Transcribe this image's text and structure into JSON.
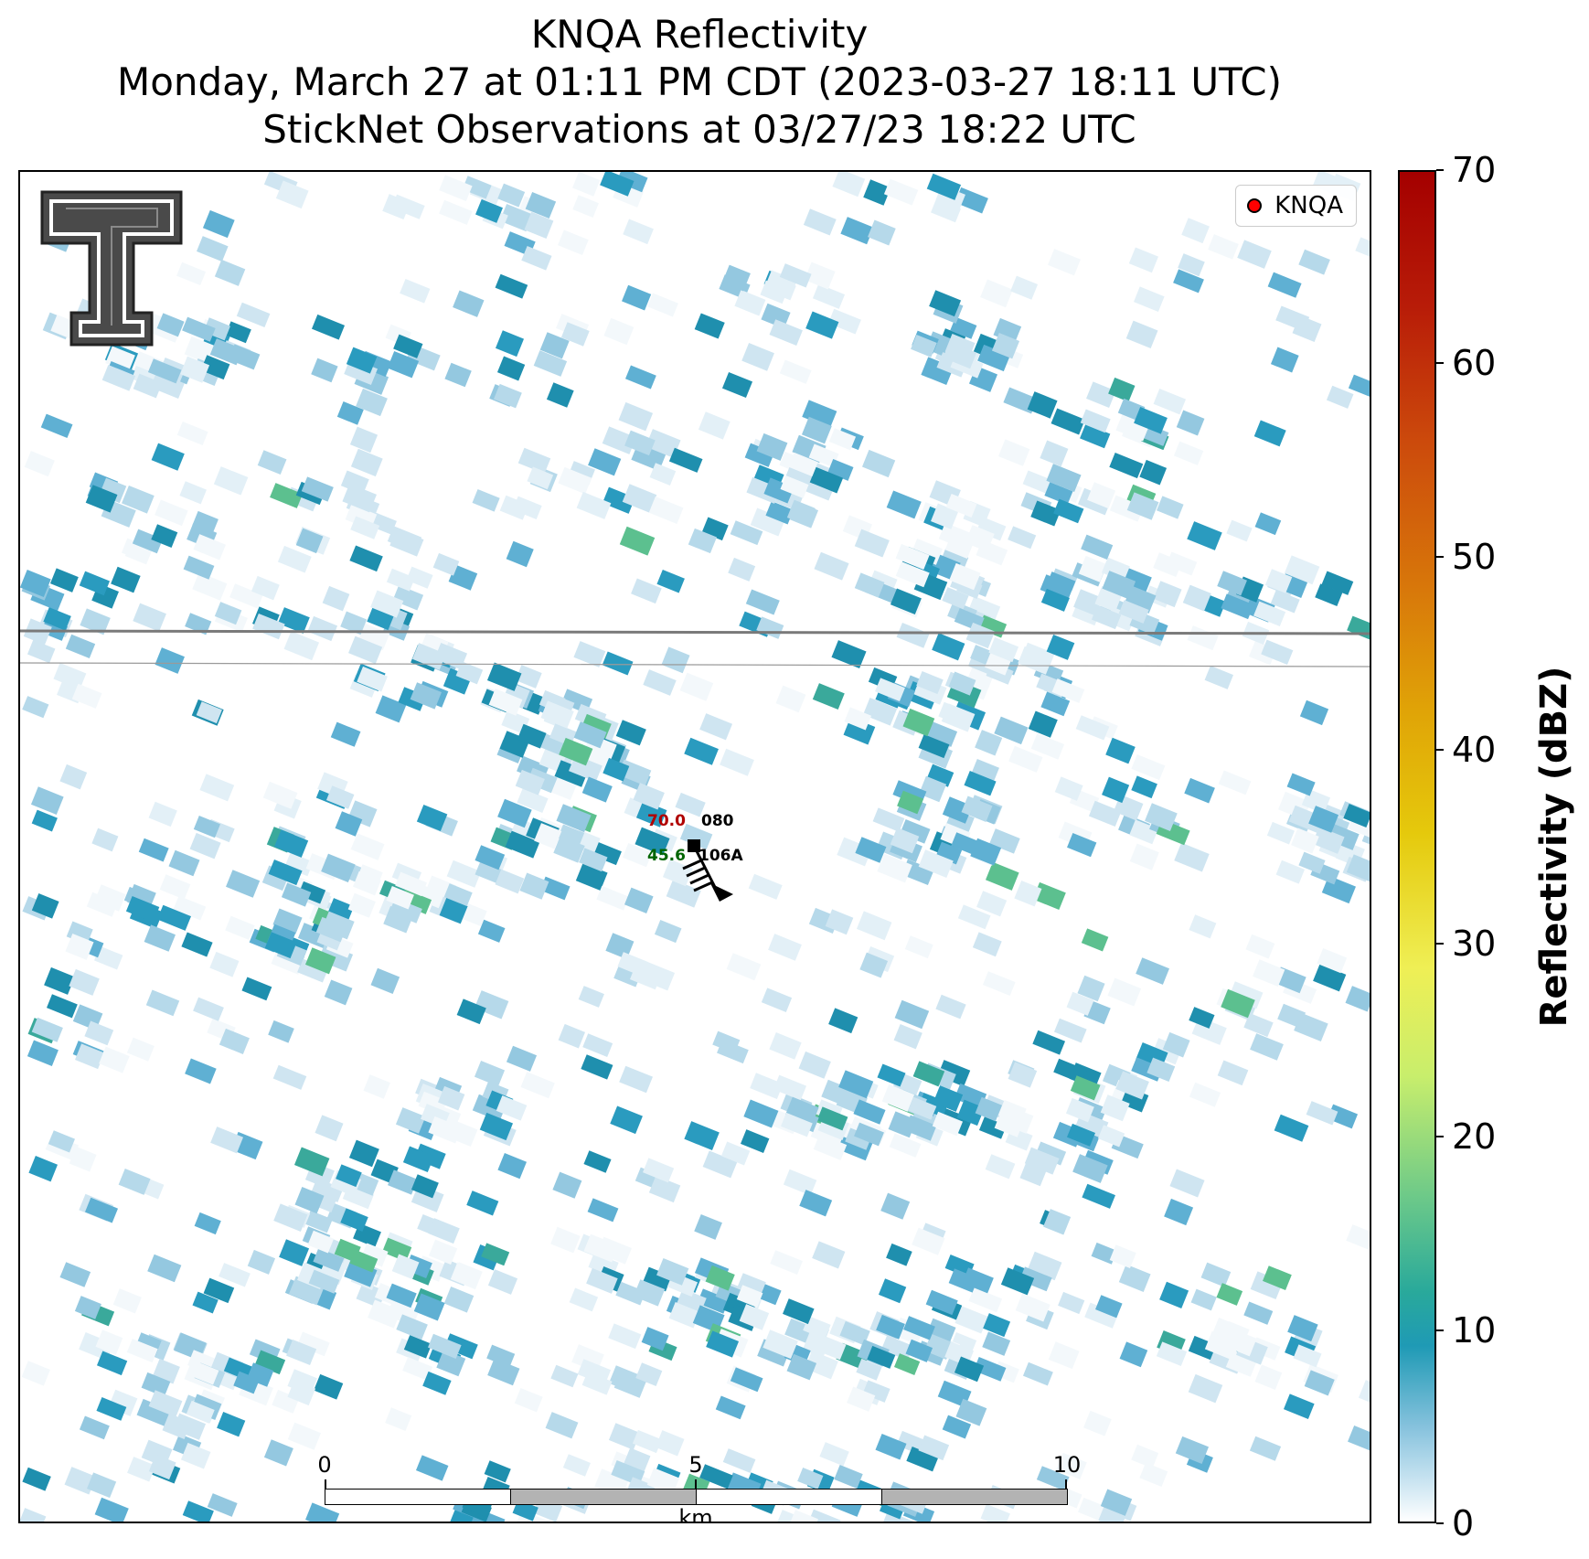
{
  "title": {
    "line1": "KNQA Reflectivity",
    "line2": "Monday, March 27 at 01:11 PM CDT (2023-03-27 18:11 UTC)",
    "line3": "StickNet Observations at 03/27/23 18:22 UTC"
  },
  "legend": {
    "label": "KNQA",
    "marker_color": "#ff0000"
  },
  "logo": {
    "name": "Texas Tech double-T logo"
  },
  "station": {
    "temperature": "70.0",
    "dewpoint": "45.6",
    "pressure": "080",
    "id": "106A",
    "temperature_color": "#b00000",
    "dewpoint_color": "#006400"
  },
  "scalebar": {
    "labels": [
      "0",
      "5",
      "10"
    ],
    "unit": "km"
  },
  "colorbar": {
    "label": "Reflectivity (dBZ)",
    "ticks": [
      "0",
      "10",
      "20",
      "30",
      "40",
      "50",
      "60",
      "70"
    ],
    "min": 0,
    "max": 70,
    "colors": [
      "#ffffff",
      "#1f9ab5",
      "#29a99b",
      "#6cc989",
      "#efef55",
      "#e5c90c",
      "#d8780a",
      "#a40000"
    ]
  }
}
